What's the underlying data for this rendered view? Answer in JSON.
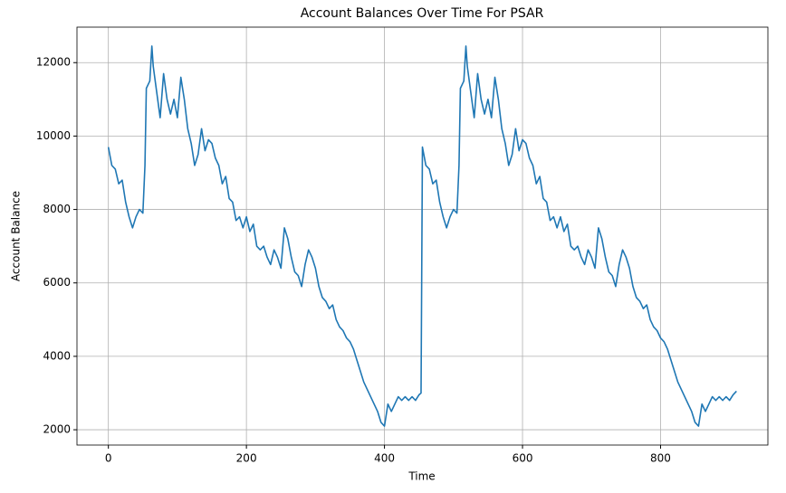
{
  "chart_data": {
    "type": "line",
    "title": "Account Balances Over Time For PSAR",
    "x_label": "Time",
    "y_label": "Account Balance",
    "x": [
      0,
      5,
      10,
      15,
      20,
      25,
      30,
      35,
      40,
      45,
      50,
      53,
      55,
      60,
      63,
      65,
      70,
      75,
      80,
      85,
      90,
      95,
      100,
      105,
      110,
      115,
      120,
      125,
      130,
      135,
      140,
      145,
      150,
      155,
      160,
      165,
      170,
      175,
      180,
      185,
      190,
      195,
      200,
      205,
      210,
      215,
      220,
      225,
      230,
      235,
      240,
      245,
      250,
      255,
      260,
      265,
      270,
      275,
      280,
      285,
      290,
      295,
      300,
      305,
      310,
      315,
      320,
      325,
      330,
      335,
      340,
      345,
      350,
      355,
      360,
      365,
      370,
      375,
      380,
      385,
      390,
      395,
      400,
      405,
      410,
      415,
      420,
      425,
      430,
      435,
      440,
      445,
      450,
      453,
      455,
      460,
      465,
      470,
      475,
      480,
      485,
      490,
      495,
      500,
      505,
      508,
      510,
      515,
      518,
      520,
      525,
      530,
      535,
      540,
      545,
      550,
      555,
      560,
      565,
      570,
      575,
      580,
      585,
      590,
      595,
      600,
      605,
      610,
      615,
      620,
      625,
      630,
      635,
      640,
      645,
      650,
      655,
      660,
      665,
      670,
      675,
      680,
      685,
      690,
      695,
      700,
      705,
      710,
      715,
      720,
      725,
      730,
      735,
      740,
      745,
      750,
      755,
      760,
      765,
      770,
      775,
      780,
      785,
      790,
      795,
      800,
      805,
      810,
      815,
      820,
      825,
      830,
      835,
      840,
      845,
      850,
      855,
      860,
      865,
      870,
      875,
      880,
      885,
      890,
      895,
      900,
      905,
      910
    ],
    "series": [
      {
        "color": "#1f77b4",
        "values": [
          9700,
          9200,
          9100,
          8700,
          8800,
          8200,
          7800,
          7500,
          7800,
          8000,
          7900,
          9200,
          11300,
          11500,
          12450,
          11900,
          11200,
          10500,
          11700,
          11000,
          10600,
          11000,
          10500,
          11600,
          11000,
          10200,
          9800,
          9200,
          9500,
          10200,
          9600,
          9900,
          9800,
          9400,
          9200,
          8700,
          8900,
          8300,
          8200,
          7700,
          7800,
          7500,
          7800,
          7400,
          7600,
          7000,
          6900,
          7000,
          6700,
          6500,
          6900,
          6700,
          6400,
          7500,
          7200,
          6700,
          6300,
          6200,
          5900,
          6500,
          6900,
          6700,
          6400,
          5900,
          5600,
          5500,
          5300,
          5400,
          5000,
          4800,
          4700,
          4500,
          4400,
          4200,
          3900,
          3600,
          3300,
          3100,
          2900,
          2700,
          2500,
          2200,
          2100,
          2700,
          2500,
          2700,
          2900,
          2800,
          2900,
          2800,
          2900,
          2800,
          2950,
          3000,
          9700,
          9200,
          9100,
          8700,
          8800,
          8200,
          7800,
          7500,
          7800,
          8000,
          7900,
          9200,
          11300,
          11500,
          12450,
          11900,
          11200,
          10500,
          11700,
          11000,
          10600,
          11000,
          10500,
          11600,
          11000,
          10200,
          9800,
          9200,
          9500,
          10200,
          9600,
          9900,
          9800,
          9400,
          9200,
          8700,
          8900,
          8300,
          8200,
          7700,
          7800,
          7500,
          7800,
          7400,
          7600,
          7000,
          6900,
          7000,
          6700,
          6500,
          6900,
          6700,
          6400,
          7500,
          7200,
          6700,
          6300,
          6200,
          5900,
          6500,
          6900,
          6700,
          6400,
          5900,
          5600,
          5500,
          5300,
          5400,
          5000,
          4800,
          4700,
          4500,
          4400,
          4200,
          3900,
          3600,
          3300,
          3100,
          2900,
          2700,
          2500,
          2200,
          2100,
          2700,
          2500,
          2700,
          2900,
          2800,
          2900,
          2800,
          2900,
          2800,
          2950,
          3050
        ]
      }
    ],
    "xlim": [
      -45.5,
      955.5
    ],
    "ylim": [
      1583,
      12967
    ],
    "xticks": [
      0,
      200,
      400,
      600,
      800
    ],
    "yticks": [
      2000,
      4000,
      6000,
      8000,
      10000,
      12000
    ],
    "grid": true
  }
}
